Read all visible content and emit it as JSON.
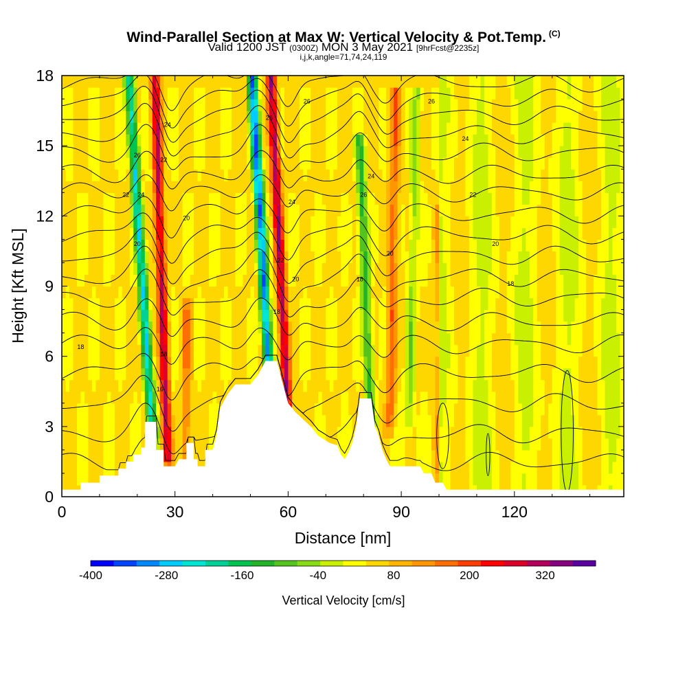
{
  "title": {
    "main": "Wind-Parallel Section at Max W: Vertical Velocity & Pot.Temp.",
    "copyright": "(C)",
    "valid_prefix": "Valid 1200 JST",
    "valid_utc": "(0300Z)",
    "valid_date": "MON 3 May 2021",
    "forecast": "[9hrFcst@2235z]",
    "indices": "i,j,k,angle=71,74,24,119"
  },
  "chart_data": {
    "type": "heatmap",
    "xlabel": "Distance [nm]",
    "ylabel": "Height [Kft MSL]",
    "xlim": [
      0,
      149
    ],
    "ylim": [
      0,
      18
    ],
    "x_ticks": [
      0,
      30,
      60,
      90,
      120
    ],
    "y_ticks": [
      0,
      3,
      6,
      9,
      12,
      15,
      18
    ],
    "colorbar": {
      "label": "Vertical Velocity [cm/s]",
      "range": [
        -400,
        400
      ],
      "tick_values": [
        -400,
        -280,
        -160,
        -40,
        80,
        200,
        320
      ],
      "colors": [
        "#0000ff",
        "#0044ff",
        "#0088ff",
        "#00ccff",
        "#00e6d2",
        "#00d296",
        "#00c350",
        "#22b428",
        "#55c31e",
        "#88dc14",
        "#c8f000",
        "#ffff00",
        "#ffd700",
        "#ffb400",
        "#ff9600",
        "#ff6e00",
        "#ff3c00",
        "#ff0000",
        "#dc0028",
        "#b4005a",
        "#87007d",
        "#5a00a0"
      ]
    },
    "velocity_features": [
      {
        "x": 24,
        "zmin": 2.5,
        "zmax": 18,
        "tilt": -0.4,
        "w": -300
      },
      {
        "x": 28,
        "zmin": 1.5,
        "zmax": 18,
        "tilt": -0.2,
        "w": 280
      },
      {
        "x": 55,
        "zmin": 5,
        "zmax": 18,
        "tilt": -0.35,
        "w": -380
      },
      {
        "x": 60,
        "zmin": 3,
        "zmax": 18,
        "tilt": -0.3,
        "w": 300
      },
      {
        "x": 82,
        "zmin": 3,
        "zmax": 15,
        "tilt": -0.25,
        "w": -180
      },
      {
        "x": 87,
        "zmin": 3,
        "zmax": 17,
        "tilt": 0.1,
        "w": 140
      },
      {
        "x": 33,
        "zmin": 1.3,
        "zmax": 8,
        "tilt": 0,
        "w": 120
      },
      {
        "x": 92,
        "zmin": 3,
        "zmax": 17,
        "tilt": 0.15,
        "w": -100
      },
      {
        "x": 100,
        "zmin": 1,
        "zmax": 12,
        "tilt": 0,
        "w": 70
      }
    ],
    "terrain": [
      [
        0,
        0.3
      ],
      [
        5,
        0.3
      ],
      [
        5,
        0.6
      ],
      [
        10,
        0.6
      ],
      [
        10,
        0.9
      ],
      [
        15,
        0.9
      ],
      [
        15,
        1.2
      ],
      [
        17,
        1.2
      ],
      [
        17,
        1.5
      ],
      [
        19,
        1.5
      ],
      [
        19,
        1.8
      ],
      [
        21,
        1.8
      ],
      [
        21,
        2.1
      ],
      [
        22,
        2.1
      ],
      [
        22,
        3.2
      ],
      [
        25,
        3.2
      ],
      [
        25,
        2.0
      ],
      [
        27,
        2.0
      ],
      [
        27,
        1.3
      ],
      [
        30,
        1.3
      ],
      [
        31,
        1.6
      ],
      [
        33,
        1.6
      ],
      [
        33,
        2.3
      ],
      [
        35,
        2.3
      ],
      [
        35,
        1.6
      ],
      [
        36,
        1.6
      ],
      [
        36,
        1.3
      ],
      [
        38,
        1.3
      ],
      [
        38,
        2.0
      ],
      [
        40,
        2.0
      ],
      [
        41,
        2.6
      ],
      [
        42,
        3.8
      ],
      [
        44,
        4.4
      ],
      [
        46,
        4.8
      ],
      [
        50,
        4.8
      ],
      [
        52,
        5.2
      ],
      [
        53,
        5.5
      ],
      [
        54,
        5.8
      ],
      [
        57,
        5.8
      ],
      [
        58,
        5.2
      ],
      [
        59,
        4.6
      ],
      [
        60,
        4.0
      ],
      [
        62,
        3.6
      ],
      [
        64,
        3.3
      ],
      [
        66,
        3.0
      ],
      [
        68,
        2.6
      ],
      [
        71,
        2.3
      ],
      [
        73,
        2.2
      ],
      [
        74,
        1.8
      ],
      [
        75,
        1.6
      ],
      [
        76,
        1.9
      ],
      [
        77,
        2.3
      ],
      [
        78,
        3.0
      ],
      [
        79,
        4.2
      ],
      [
        82,
        4.2
      ],
      [
        83,
        3.0
      ],
      [
        84,
        2.6
      ],
      [
        85,
        2.0
      ],
      [
        86,
        1.6
      ],
      [
        87,
        1.3
      ],
      [
        95,
        1.3
      ],
      [
        96,
        1.0
      ],
      [
        98,
        1.0
      ],
      [
        99,
        0.6
      ],
      [
        101,
        0.6
      ],
      [
        102,
        0.3
      ],
      [
        149,
        0.3
      ]
    ],
    "isentropes": [
      {
        "z0": 1.5
      },
      {
        "z0": 2.7
      },
      {
        "z0": 4.0
      },
      {
        "z0": 5.3,
        "label": "18"
      },
      {
        "z0": 6.5
      },
      {
        "z0": 7.5
      },
      {
        "z0": 8.5
      },
      {
        "z0": 9.4,
        "label": "18"
      },
      {
        "z0": 10.3
      },
      {
        "z0": 11.2,
        "label": "20"
      },
      {
        "z0": 12.1
      },
      {
        "z0": 13.0,
        "label": "22"
      },
      {
        "z0": 13.8
      },
      {
        "z0": 14.7,
        "label": "24"
      },
      {
        "z0": 15.5
      },
      {
        "z0": 16.3,
        "label": "26"
      },
      {
        "z0": 17.0
      },
      {
        "z0": 17.7
      }
    ],
    "contour_labels": [
      {
        "x": 5,
        "y": 6.4,
        "text": "18"
      },
      {
        "x": 28,
        "y": 15.9,
        "text": "24"
      },
      {
        "x": 20,
        "y": 14.6,
        "text": "26"
      },
      {
        "x": 27,
        "y": 14.4,
        "text": "22"
      },
      {
        "x": 17,
        "y": 12.9,
        "text": "22"
      },
      {
        "x": 21,
        "y": 12.9,
        "text": "24"
      },
      {
        "x": 33,
        "y": 11.9,
        "text": "20"
      },
      {
        "x": 20,
        "y": 10.8,
        "text": "20"
      },
      {
        "x": 27,
        "y": 6.1,
        "text": "18"
      },
      {
        "x": 26,
        "y": 4.6,
        "text": "16"
      },
      {
        "x": 55,
        "y": 16.2,
        "text": "26"
      },
      {
        "x": 65,
        "y": 16.9,
        "text": "26"
      },
      {
        "x": 61,
        "y": 12.6,
        "text": "24"
      },
      {
        "x": 58,
        "y": 10.1,
        "text": "22"
      },
      {
        "x": 62,
        "y": 9.3,
        "text": "20"
      },
      {
        "x": 57,
        "y": 7.9,
        "text": "18"
      },
      {
        "x": 82,
        "y": 13.7,
        "text": "24"
      },
      {
        "x": 80,
        "y": 12.9,
        "text": "26"
      },
      {
        "x": 87,
        "y": 10.4,
        "text": "20"
      },
      {
        "x": 79,
        "y": 9.3,
        "text": "18"
      },
      {
        "x": 98,
        "y": 16.9,
        "text": "26"
      },
      {
        "x": 107,
        "y": 15.3,
        "text": "24"
      },
      {
        "x": 109,
        "y": 12.9,
        "text": "22"
      },
      {
        "x": 115,
        "y": 10.8,
        "text": "20"
      },
      {
        "x": 119,
        "y": 9.1,
        "text": "18"
      }
    ]
  }
}
